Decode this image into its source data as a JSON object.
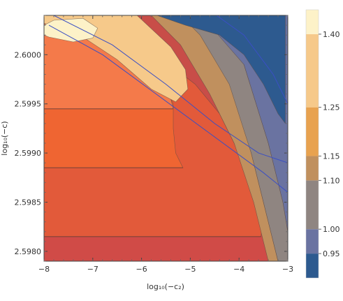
{
  "chart_data": {
    "type": "contour",
    "xlabel": "log₁₀(−c₂)",
    "ylabel": "log₁₀(−c)",
    "xlim": [
      -8,
      -3
    ],
    "ylim": [
      2.5979,
      2.6004
    ],
    "x_ticks": [
      {
        "value": -8,
        "label": "−8"
      },
      {
        "value": -7,
        "label": "−7"
      },
      {
        "value": -6,
        "label": "−6"
      },
      {
        "value": -5,
        "label": "−5"
      },
      {
        "value": -4,
        "label": "−4"
      },
      {
        "value": -3,
        "label": "−3"
      }
    ],
    "y_ticks": [
      {
        "value": 2.598,
        "label": "2.5980"
      },
      {
        "value": 2.5985,
        "label": "2.5985"
      },
      {
        "value": 2.599,
        "label": "2.5990"
      },
      {
        "value": 2.5995,
        "label": "2.5995"
      },
      {
        "value": 2.6,
        "label": "2.6000"
      }
    ],
    "colorbar": {
      "range": [
        0.9,
        1.45
      ],
      "tick_labels": [
        {
          "value": 0.95,
          "label": "0.95"
        },
        {
          "value": 1.0,
          "label": "1.00"
        },
        {
          "value": 1.1,
          "label": "1.10"
        },
        {
          "value": 1.15,
          "label": "1.15"
        },
        {
          "value": 1.25,
          "label": "1.25"
        },
        {
          "value": 1.4,
          "label": "1.40"
        }
      ],
      "bands": [
        {
          "from": 0.9,
          "to": 0.95,
          "color": "#2d5a8f"
        },
        {
          "from": 0.95,
          "to": 1.0,
          "color": "#6a73a1"
        },
        {
          "from": 1.0,
          "to": 1.1,
          "color": "#8f8581"
        },
        {
          "from": 1.1,
          "to": 1.15,
          "color": "#c0905e"
        },
        {
          "from": 1.15,
          "to": 1.25,
          "color": "#e8a24f"
        },
        {
          "from": 1.25,
          "to": 1.4,
          "color": "#f6c98a"
        },
        {
          "from": 1.4,
          "to": 1.45,
          "color": "#fdf2c8"
        }
      ]
    },
    "regions": [
      {
        "name": "band-red-dark",
        "color": "#d04b47",
        "points": [
          [
            -8,
            2.5979
          ],
          [
            -3,
            2.5979
          ],
          [
            -3,
            2.5981
          ],
          [
            -3.2,
            2.5984
          ],
          [
            -3.6,
            2.5988
          ],
          [
            -4.05,
            2.5991
          ],
          [
            -4.6,
            2.5994
          ],
          [
            -5.2,
            2.5997
          ],
          [
            -5.9,
            2.5999
          ],
          [
            -6.6,
            2.60008
          ],
          [
            -7.3,
            2.60022
          ],
          [
            -8,
            2.6004
          ]
        ]
      },
      {
        "name": "band-red-mid",
        "color": "#e25a3a",
        "points": [
          [
            -8,
            2.59815
          ],
          [
            -3.55,
            2.59815
          ],
          [
            -3.5,
            2.5984
          ],
          [
            -3.75,
            2.5987
          ],
          [
            -4.1,
            2.5991
          ],
          [
            -4.4,
            2.5994
          ],
          [
            -4.9,
            2.5997
          ],
          [
            -5.5,
            2.59993
          ],
          [
            -6.2,
            2.60012
          ],
          [
            -7.0,
            2.6003
          ],
          [
            -8,
            2.60045
          ]
        ]
      },
      {
        "name": "band-orange-red",
        "color": "#ef6532",
        "points": [
          [
            -8,
            2.59885
          ],
          [
            -5.15,
            2.59885
          ],
          [
            -5.3,
            2.599
          ],
          [
            -5.35,
            2.59925
          ],
          [
            -5.35,
            2.5995
          ],
          [
            -5.5,
            2.59965
          ],
          [
            -6.0,
            2.59985
          ],
          [
            -6.6,
            2.6001
          ],
          [
            -7.3,
            2.6003
          ],
          [
            -8,
            2.6004
          ]
        ]
      },
      {
        "name": "band-salmon",
        "color": "#f47a4a",
        "points": [
          [
            -8,
            2.59945
          ],
          [
            -5.35,
            2.59945
          ],
          [
            -5.4,
            2.59955
          ],
          [
            -5.6,
            2.59965
          ],
          [
            -6.2,
            2.5999
          ],
          [
            -6.8,
            2.60015
          ],
          [
            -7.4,
            2.60032
          ],
          [
            -8,
            2.6004
          ]
        ]
      },
      {
        "name": "band-light-orange",
        "color": "#f6c98a",
        "points": [
          [
            -8,
            2.60045
          ],
          [
            -6.2,
            2.60045
          ],
          [
            -5.4,
            2.60008
          ],
          [
            -5.1,
            2.59985
          ],
          [
            -5.05,
            2.59965
          ],
          [
            -5.3,
            2.59952
          ],
          [
            -5.8,
            2.59965
          ],
          [
            -6.5,
            2.59995
          ],
          [
            -7.2,
            2.60018
          ],
          [
            -8,
            2.60032
          ]
        ]
      },
      {
        "name": "band-cream",
        "color": "#fdf2c8",
        "points": [
          [
            -8,
            2.6003
          ],
          [
            -7.8,
            2.60035
          ],
          [
            -7.2,
            2.60037
          ],
          [
            -6.9,
            2.60027
          ],
          [
            -7.0,
            2.60017
          ],
          [
            -7.4,
            2.60013
          ],
          [
            -7.9,
            2.60018
          ],
          [
            -8,
            2.6002
          ]
        ]
      },
      {
        "name": "band-brown",
        "color": "#c0905e",
        "points": [
          [
            -6.0,
            2.6005
          ],
          [
            -5.0,
            2.6005
          ],
          [
            -4.2,
            2.5999
          ],
          [
            -3.75,
            2.599
          ],
          [
            -3.4,
            2.5983
          ],
          [
            -3.2,
            2.5979
          ],
          [
            -3.4,
            2.5979
          ],
          [
            -3.7,
            2.5985
          ],
          [
            -4.1,
            2.5991
          ],
          [
            -4.6,
            2.5996
          ],
          [
            -5.2,
            2.6001
          ]
        ]
      },
      {
        "name": "band-gray",
        "color": "#8f8581",
        "points": [
          [
            -5.4,
            2.6005
          ],
          [
            -4.6,
            2.6005
          ],
          [
            -3.9,
            2.5999
          ],
          [
            -3.4,
            2.5991
          ],
          [
            -3.1,
            2.5985
          ],
          [
            -3,
            2.5982
          ],
          [
            -3,
            2.5979
          ],
          [
            -3.2,
            2.5979
          ],
          [
            -3.4,
            2.5983
          ],
          [
            -3.75,
            2.599
          ],
          [
            -4.2,
            2.5997
          ],
          [
            -4.8,
            2.6002
          ]
        ]
      },
      {
        "name": "band-slate",
        "color": "#6a73a1",
        "points": [
          [
            -6.9,
            2.6005
          ],
          [
            -3,
            2.6005
          ],
          [
            -3,
            2.5982
          ],
          [
            -3.1,
            2.5985
          ],
          [
            -3.4,
            2.5991
          ],
          [
            -3.9,
            2.5999
          ],
          [
            -4.6,
            2.6003
          ],
          [
            -5.5,
            2.6004
          ],
          [
            -6.4,
            2.6004
          ]
        ]
      },
      {
        "name": "band-navy",
        "color": "#2d5a8f",
        "points": [
          [
            -6.3,
            2.6005
          ],
          [
            -3.05,
            2.6005
          ],
          [
            -3.05,
            2.5993
          ],
          [
            -3.2,
            2.5994
          ],
          [
            -3.5,
            2.5997
          ],
          [
            -3.9,
            2.6
          ],
          [
            -4.4,
            2.6002
          ],
          [
            -5.1,
            2.6003
          ],
          [
            -5.8,
            2.60042
          ]
        ]
      }
    ],
    "blue_lines": [
      [
        [
          -7.8,
          2.6004
        ],
        [
          -6.6,
          2.6001
        ],
        [
          -5.5,
          2.5997
        ],
        [
          -4.5,
          2.5993
        ],
        [
          -3.6,
          2.599
        ],
        [
          -3.0,
          2.5989
        ]
      ],
      [
        [
          -7.9,
          2.6003
        ],
        [
          -6.8,
          2.6
        ],
        [
          -5.7,
          2.5996
        ],
        [
          -4.6,
          2.5992
        ],
        [
          -3.5,
          2.5988
        ],
        [
          -3.0,
          2.5986
        ]
      ],
      [
        [
          -4.6,
          2.60045
        ],
        [
          -3.9,
          2.6002
        ],
        [
          -3.3,
          2.5998
        ],
        [
          -3.0,
          2.5995
        ]
      ]
    ],
    "contour_lines": [
      [
        [
          -8,
          2.59815
        ],
        [
          -3.55,
          2.59815
        ]
      ],
      [
        [
          -8,
          2.59885
        ],
        [
          -5.15,
          2.59885
        ]
      ],
      [
        [
          -8,
          2.59945
        ],
        [
          -5.35,
          2.59945
        ]
      ]
    ]
  }
}
